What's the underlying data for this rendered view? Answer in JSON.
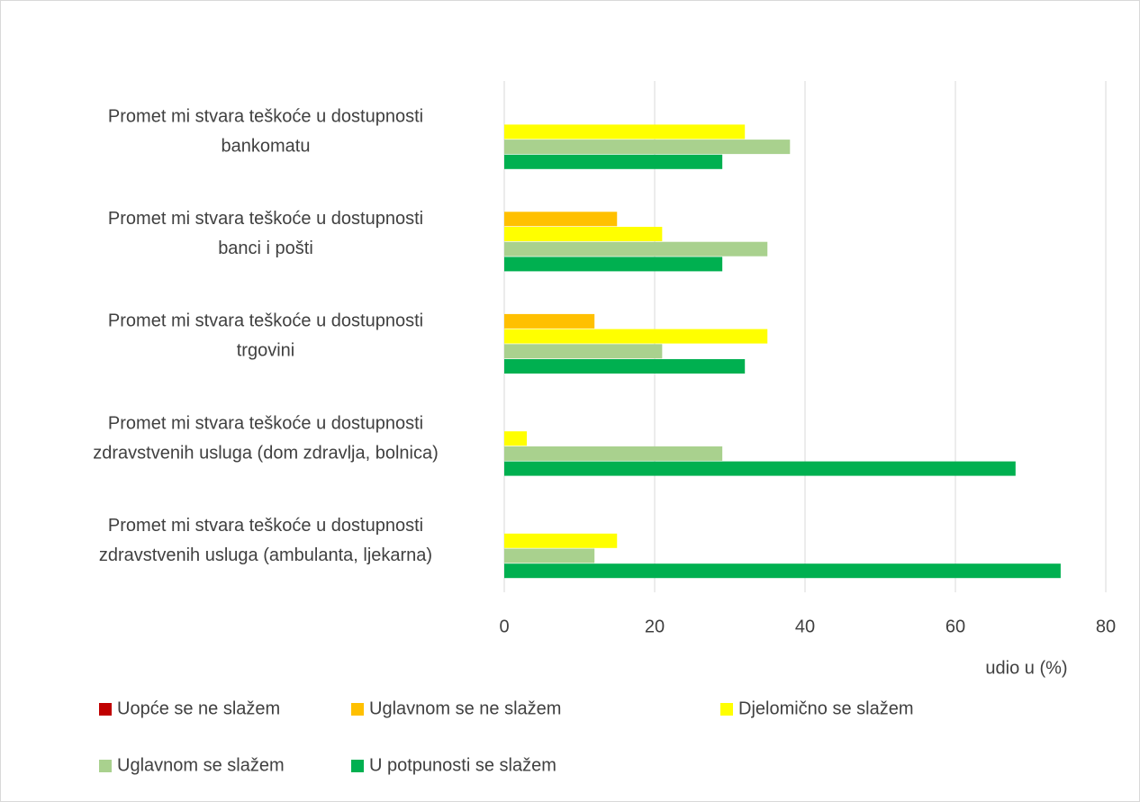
{
  "chart_data": {
    "type": "barh",
    "categories": [
      [
        "Promet mi stvara teškoće u dostupnosti",
        "bankomatu"
      ],
      [
        "Promet mi stvara teškoće u dostupnosti",
        "banci i pošti"
      ],
      [
        "Promet mi stvara teškoće u dostupnosti",
        "trgovini"
      ],
      [
        "Promet mi stvara teškoće u dostupnosti",
        "zdravstvenih usluga (dom zdravlja, bolnica)"
      ],
      [
        "Promet mi stvara teškoće u dostupnosti",
        "zdravstvenih usluga (ambulanta, ljekarna)"
      ]
    ],
    "series": [
      {
        "name": "Uopće se ne slažem",
        "color": "#c00000",
        "values": [
          0,
          0,
          0,
          0,
          0
        ]
      },
      {
        "name": "Uglavnom se ne slažem",
        "color": "#ffc000",
        "values": [
          0,
          15,
          12,
          0,
          0
        ]
      },
      {
        "name": "Djelomično se slažem",
        "color": "#ffff00",
        "values": [
          32,
          21,
          35,
          3,
          15
        ]
      },
      {
        "name": "Uglavnom se slažem",
        "color": "#a9d18e",
        "values": [
          38,
          35,
          21,
          29,
          12
        ]
      },
      {
        "name": "U potpunosti se slažem",
        "color": "#00b050",
        "values": [
          29,
          29,
          32,
          68,
          74
        ]
      }
    ],
    "xlabel": "udio u (%)",
    "xlim": [
      0,
      80
    ],
    "xticks": [
      0,
      20,
      40,
      60,
      80
    ],
    "grid": true,
    "legend": "bottom"
  }
}
